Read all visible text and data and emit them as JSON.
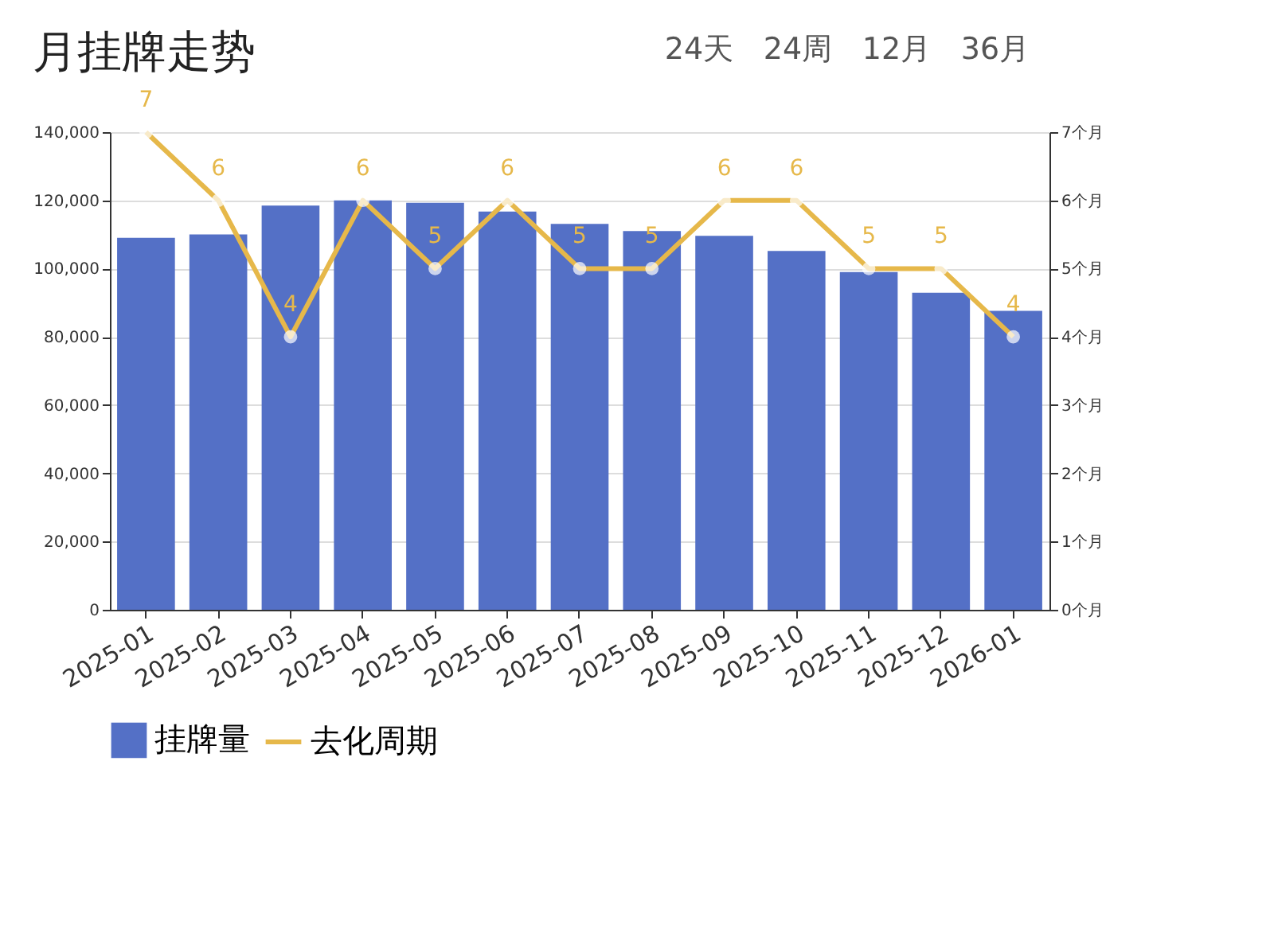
{
  "chart_data": {
    "type": "bar",
    "title": "月挂牌走势",
    "annotations": [
      "24天",
      "24周",
      "12月",
      "36月"
    ],
    "categories": [
      "2025-01",
      "2025-02",
      "2025-03",
      "2025-04",
      "2025-05",
      "2025-06",
      "2025-07",
      "2025-08",
      "2025-09",
      "2025-10",
      "2025-11",
      "2025-12",
      "2026-01"
    ],
    "series": [
      {
        "name": "挂牌量",
        "color": "#5470c6",
        "values": [
          109000,
          110000,
          118500,
          120000,
          119300,
          116700,
          113100,
          111000,
          109600,
          105200,
          99000,
          92900,
          87600
        ]
      },
      {
        "name": "去化周期",
        "type": "line",
        "axis": "y2",
        "color": "#e6b84a",
        "marker": "circle",
        "data_labels": true,
        "values": [
          7,
          6,
          4,
          6,
          5,
          6,
          5,
          5,
          6,
          6,
          5,
          5,
          4
        ]
      }
    ],
    "ylim": [
      0,
      140000
    ],
    "yticks": [
      {
        "value": 0,
        "label": "0"
      },
      {
        "value": 20000,
        "label": "20,000"
      },
      {
        "value": 40000,
        "label": "40,000"
      },
      {
        "value": 60000,
        "label": "60,000"
      },
      {
        "value": 80000,
        "label": "80,000"
      },
      {
        "value": 100000,
        "label": "100,000"
      },
      {
        "value": 120000,
        "label": "120,000"
      },
      {
        "value": 140000,
        "label": "140,000"
      }
    ],
    "y2lim": [
      0,
      7
    ],
    "y2ticks": [
      {
        "value": 0,
        "label": "0个月"
      },
      {
        "value": 1,
        "label": "1个月"
      },
      {
        "value": 2,
        "label": "2个月"
      },
      {
        "value": 3,
        "label": "3个月"
      },
      {
        "value": 4,
        "label": "4个月"
      },
      {
        "value": 5,
        "label": "5个月"
      },
      {
        "value": 6,
        "label": "6个月"
      },
      {
        "value": 7,
        "label": "7个月"
      }
    ],
    "grid": "y",
    "legend": "bottom"
  }
}
